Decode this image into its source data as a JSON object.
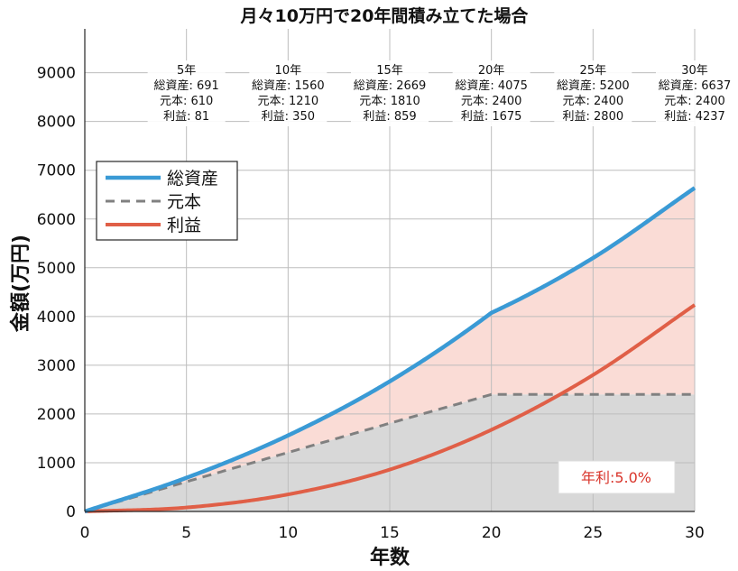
{
  "chart_data": {
    "type": "area",
    "title": "月々10万円で20年間積み立てた場合",
    "xlabel": "年数",
    "ylabel": "金額(万円)",
    "xlim": [
      0,
      30
    ],
    "ylim": [
      0,
      9900
    ],
    "xticks": [
      0,
      5,
      10,
      15,
      20,
      25,
      30
    ],
    "yticks": [
      0,
      1000,
      2000,
      3000,
      4000,
      5000,
      6000,
      7000,
      8000,
      9000
    ],
    "grid": true,
    "legend_position": "upper-left",
    "x": [
      0,
      5,
      10,
      15,
      20,
      25,
      30
    ],
    "series": [
      {
        "name": "総資産",
        "style": "solid",
        "color": "#3a9ad5",
        "values": [
          0,
          691,
          1560,
          2669,
          4075,
          5200,
          6637
        ]
      },
      {
        "name": "元本",
        "style": "dashed",
        "color": "#808080",
        "values": [
          0,
          610,
          1210,
          1810,
          2400,
          2400,
          2400
        ]
      },
      {
        "name": "利益",
        "style": "solid",
        "color": "#e05f47",
        "values": [
          0,
          81,
          350,
          859,
          1675,
          2800,
          4237
        ]
      }
    ],
    "fill_colors": {
      "principal": "#d8d8d8",
      "profit": "#fadcd6"
    },
    "annotations": [
      {
        "x": 5,
        "year_label": "5年",
        "total_label": "総資産: 691",
        "principal_label": "元本: 610",
        "profit_label": "利益: 81"
      },
      {
        "x": 10,
        "year_label": "10年",
        "total_label": "総資産: 1560",
        "principal_label": "元本: 1210",
        "profit_label": "利益: 350"
      },
      {
        "x": 15,
        "year_label": "15年",
        "total_label": "総資産: 2669",
        "principal_label": "元本: 1810",
        "profit_label": "利益: 859"
      },
      {
        "x": 20,
        "year_label": "20年",
        "total_label": "総資産: 4075",
        "principal_label": "元本: 2400",
        "profit_label": "利益: 1675"
      },
      {
        "x": 25,
        "year_label": "25年",
        "total_label": "総資産: 5200",
        "principal_label": "元本: 2400",
        "profit_label": "利益: 2800"
      },
      {
        "x": 30,
        "year_label": "30年",
        "total_label": "総資産: 6637",
        "principal_label": "元本: 2400",
        "profit_label": "利益: 4237"
      }
    ],
    "rate_label": "年利:5.0%",
    "rate_color": "#d9352b"
  }
}
